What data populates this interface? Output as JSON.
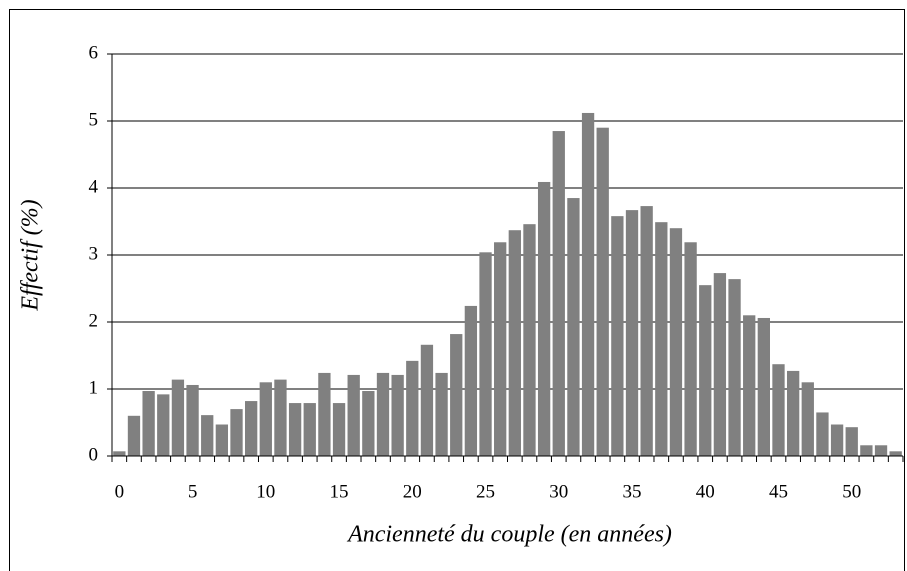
{
  "chart_data": {
    "type": "bar",
    "xlabel": "Ancienneté du couple (en années)",
    "ylabel": "Effectif (%)",
    "categories": [
      "0",
      null,
      null,
      null,
      null,
      "5",
      null,
      null,
      null,
      null,
      "10",
      null,
      null,
      null,
      null,
      "15",
      null,
      null,
      null,
      null,
      "20",
      null,
      null,
      null,
      null,
      "25",
      null,
      null,
      null,
      null,
      "30",
      null,
      null,
      null,
      null,
      "35",
      null,
      null,
      null,
      null,
      "40",
      null,
      null,
      null,
      null,
      "45",
      null,
      null,
      null,
      null,
      "50",
      null,
      null,
      null
    ],
    "values": [
      0.07,
      0.6,
      0.97,
      0.92,
      1.14,
      1.06,
      0.61,
      0.47,
      0.7,
      0.82,
      1.1,
      1.14,
      0.79,
      0.79,
      1.24,
      0.79,
      1.21,
      0.97,
      1.24,
      1.21,
      1.42,
      1.66,
      1.24,
      1.82,
      2.24,
      3.04,
      3.19,
      3.37,
      3.46,
      4.09,
      4.85,
      3.85,
      5.12,
      4.9,
      3.58,
      3.67,
      3.73,
      3.49,
      3.4,
      3.19,
      2.55,
      2.73,
      2.64,
      2.1,
      2.06,
      1.37,
      1.27,
      1.1,
      0.65,
      0.47,
      0.43,
      0.16,
      0.16,
      0.07
    ],
    "color": "#808080",
    "ylim": [
      0,
      6
    ],
    "yticks": [
      0,
      1,
      2,
      3,
      4,
      5,
      6
    ],
    "grid": true
  }
}
